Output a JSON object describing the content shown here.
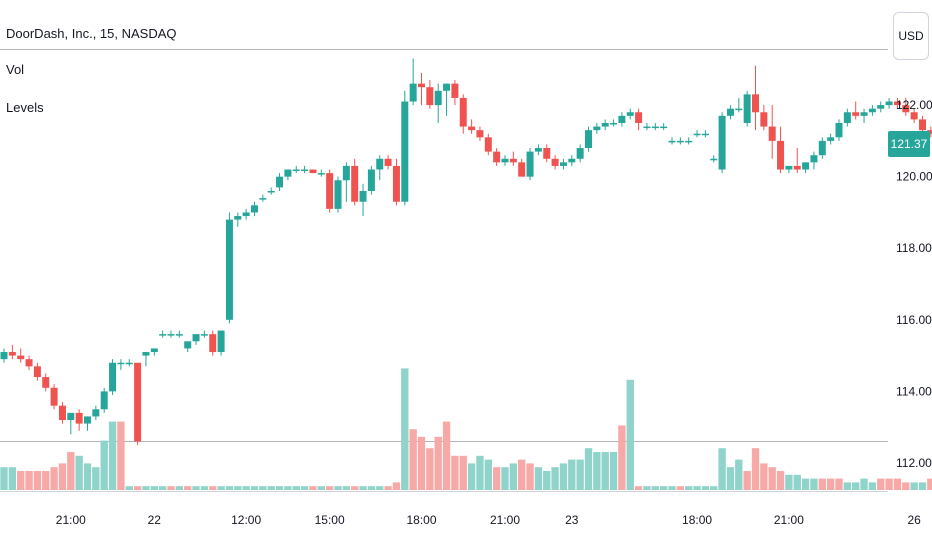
{
  "header": {
    "symbol_title": "DoorDash, Inc., 15, NASDAQ",
    "indicators": [
      "Vol",
      "Levels"
    ],
    "currency": "USD"
  },
  "last_price": {
    "label": "121.37",
    "value": 121.37,
    "color": "#26a69a"
  },
  "colors": {
    "up": "#26a69a",
    "down": "#ef5350",
    "vol_up": "#8fd3cb",
    "vol_down": "#f7a9a7",
    "level_line": "#b2b5be"
  },
  "chart_data": {
    "type": "candlestick",
    "ylim": [
      111.3,
      123.4
    ],
    "ytick_labels": [
      "112.00",
      "114.00",
      "116.00",
      "118.00",
      "120.00",
      "122.00"
    ],
    "ytick_values": [
      112,
      114,
      116,
      118,
      120,
      122
    ],
    "xtick_labels": [
      "21:00",
      "22",
      "12:00",
      "15:00",
      "18:00",
      "21:00",
      "23",
      "18:00",
      "21:00",
      "26"
    ],
    "xtick_positions": [
      8,
      18,
      29,
      39,
      50,
      60,
      68,
      83,
      94,
      109
    ],
    "level_price": 112.6,
    "candles": [
      [
        114.9,
        115.2,
        114.8,
        115.1
      ],
      [
        115.1,
        115.3,
        114.9,
        115.0
      ],
      [
        115.0,
        115.2,
        114.8,
        114.9
      ],
      [
        114.9,
        115.0,
        114.6,
        114.7
      ],
      [
        114.7,
        114.8,
        114.3,
        114.4
      ],
      [
        114.4,
        114.5,
        114.0,
        114.1
      ],
      [
        114.1,
        114.2,
        113.5,
        113.6
      ],
      [
        113.6,
        113.7,
        113.1,
        113.2
      ],
      [
        113.2,
        113.4,
        112.8,
        113.4
      ],
      [
        113.4,
        113.5,
        112.9,
        113.1
      ],
      [
        113.1,
        113.3,
        112.9,
        113.3
      ],
      [
        113.3,
        113.6,
        113.2,
        113.5
      ],
      [
        113.5,
        114.1,
        113.4,
        114.0
      ],
      [
        114.0,
        114.9,
        113.9,
        114.8
      ],
      [
        114.8,
        114.9,
        114.6,
        114.8
      ],
      [
        114.8,
        114.9,
        114.7,
        114.8
      ],
      [
        114.8,
        114.8,
        112.5,
        112.6
      ],
      [
        115.0,
        115.1,
        114.7,
        115.1
      ],
      [
        115.1,
        115.2,
        115.0,
        115.2
      ],
      [
        115.6,
        115.7,
        115.5,
        115.6
      ],
      [
        115.6,
        115.7,
        115.5,
        115.6
      ],
      [
        115.6,
        115.7,
        115.5,
        115.6
      ],
      [
        115.2,
        115.3,
        115.1,
        115.4
      ],
      [
        115.4,
        115.6,
        115.3,
        115.6
      ],
      [
        115.6,
        115.7,
        115.5,
        115.6
      ],
      [
        115.6,
        115.7,
        115.0,
        115.1
      ],
      [
        115.1,
        115.7,
        115.0,
        115.7
      ],
      [
        116.0,
        119.0,
        115.9,
        118.8
      ],
      [
        118.8,
        119.0,
        118.6,
        118.9
      ],
      [
        118.9,
        119.1,
        118.8,
        119.0
      ],
      [
        119.0,
        119.3,
        118.9,
        119.2
      ],
      [
        119.4,
        119.5,
        119.3,
        119.4
      ],
      [
        119.6,
        119.7,
        119.5,
        119.6
      ],
      [
        119.7,
        120.1,
        119.6,
        120.0
      ],
      [
        120.0,
        120.2,
        119.9,
        120.2
      ],
      [
        120.2,
        120.3,
        120.1,
        120.2
      ],
      [
        120.2,
        120.3,
        120.1,
        120.2
      ],
      [
        120.2,
        120.2,
        120.1,
        120.1
      ],
      [
        120.1,
        120.2,
        120.0,
        120.1
      ],
      [
        120.1,
        120.2,
        119.0,
        119.1
      ],
      [
        119.1,
        120.0,
        119.0,
        119.9
      ],
      [
        119.9,
        120.4,
        119.3,
        120.3
      ],
      [
        120.3,
        120.5,
        119.2,
        119.3
      ],
      [
        119.3,
        119.8,
        118.9,
        119.6
      ],
      [
        119.6,
        120.3,
        119.5,
        120.2
      ],
      [
        120.2,
        120.6,
        119.9,
        120.5
      ],
      [
        120.5,
        120.6,
        120.2,
        120.3
      ],
      [
        120.3,
        120.5,
        119.2,
        119.3
      ],
      [
        119.3,
        122.4,
        119.2,
        122.1
      ],
      [
        122.1,
        123.3,
        122.0,
        122.6
      ],
      [
        122.6,
        122.9,
        122.0,
        122.5
      ],
      [
        122.5,
        122.7,
        121.9,
        122.0
      ],
      [
        122.0,
        122.6,
        121.5,
        122.4
      ],
      [
        122.4,
        122.6,
        121.7,
        122.6
      ],
      [
        122.6,
        122.7,
        122.0,
        122.2
      ],
      [
        122.2,
        122.3,
        121.2,
        121.4
      ],
      [
        121.4,
        121.6,
        121.2,
        121.3
      ],
      [
        121.3,
        121.4,
        121.0,
        121.1
      ],
      [
        121.1,
        121.2,
        120.6,
        120.7
      ],
      [
        120.7,
        120.8,
        120.3,
        120.4
      ],
      [
        120.4,
        120.6,
        120.3,
        120.5
      ],
      [
        120.5,
        120.7,
        120.3,
        120.4
      ],
      [
        120.4,
        120.5,
        120.0,
        120.0
      ],
      [
        120.0,
        120.8,
        119.9,
        120.7
      ],
      [
        120.7,
        120.9,
        120.6,
        120.8
      ],
      [
        120.8,
        120.9,
        120.4,
        120.5
      ],
      [
        120.5,
        120.6,
        120.2,
        120.3
      ],
      [
        120.3,
        120.5,
        120.2,
        120.4
      ],
      [
        120.4,
        120.6,
        120.3,
        120.5
      ],
      [
        120.5,
        120.9,
        120.4,
        120.8
      ],
      [
        120.8,
        121.4,
        120.7,
        121.3
      ],
      [
        121.3,
        121.5,
        121.2,
        121.4
      ],
      [
        121.4,
        121.6,
        121.3,
        121.5
      ],
      [
        121.5,
        121.6,
        121.4,
        121.5
      ],
      [
        121.5,
        121.8,
        121.4,
        121.7
      ],
      [
        121.7,
        121.9,
        121.6,
        121.8
      ],
      [
        121.8,
        121.9,
        121.3,
        121.5
      ],
      [
        121.4,
        121.5,
        121.3,
        121.4
      ],
      [
        121.4,
        121.5,
        121.3,
        121.4
      ],
      [
        121.4,
        121.5,
        121.3,
        121.4
      ],
      [
        121.0,
        121.1,
        120.9,
        121.0
      ],
      [
        121.0,
        121.1,
        120.9,
        121.0
      ],
      [
        121.0,
        121.1,
        120.9,
        121.0
      ],
      [
        121.2,
        121.3,
        121.1,
        121.2
      ],
      [
        121.2,
        121.3,
        121.1,
        121.2
      ],
      [
        120.5,
        120.6,
        120.4,
        120.5
      ],
      [
        120.2,
        121.8,
        120.1,
        121.7
      ],
      [
        121.7,
        122.0,
        121.6,
        121.9
      ],
      [
        121.9,
        122.2,
        121.8,
        121.9
      ],
      [
        121.5,
        122.4,
        121.4,
        122.3
      ],
      [
        122.3,
        123.1,
        121.3,
        121.8
      ],
      [
        121.8,
        122.0,
        121.3,
        121.4
      ],
      [
        121.4,
        122.0,
        120.5,
        121.0
      ],
      [
        121.0,
        121.4,
        120.1,
        120.2
      ],
      [
        120.2,
        120.3,
        120.1,
        120.3
      ],
      [
        120.3,
        120.8,
        120.1,
        120.2
      ],
      [
        120.2,
        120.4,
        120.1,
        120.4
      ],
      [
        120.4,
        120.7,
        120.2,
        120.6
      ],
      [
        120.6,
        121.1,
        120.5,
        121.0
      ],
      [
        121.0,
        121.2,
        120.9,
        121.1
      ],
      [
        121.1,
        121.6,
        121.0,
        121.5
      ],
      [
        121.5,
        121.9,
        121.4,
        121.8
      ],
      [
        121.8,
        122.1,
        121.6,
        121.7
      ],
      [
        121.7,
        121.9,
        121.5,
        121.8
      ],
      [
        121.8,
        122.0,
        121.7,
        121.9
      ],
      [
        121.9,
        122.1,
        121.8,
        122.0
      ],
      [
        122.0,
        122.2,
        121.9,
        122.1
      ],
      [
        122.1,
        122.2,
        121.9,
        122.0
      ],
      [
        122.0,
        122.2,
        121.7,
        121.8
      ],
      [
        121.8,
        121.9,
        121.5,
        121.6
      ],
      [
        121.6,
        121.7,
        121.2,
        121.3
      ],
      [
        121.3,
        121.4,
        121.1,
        121.2
      ],
      [
        121.2,
        121.3,
        120.9,
        121.0
      ],
      [
        121.0,
        121.1,
        120.6,
        120.7
      ],
      [
        120.7,
        120.8,
        120.5,
        120.6
      ],
      [
        120.6,
        120.9,
        120.5,
        120.8
      ],
      [
        120.8,
        121.6,
        120.7,
        121.5
      ],
      [
        121.6,
        122.1,
        121.3,
        121.4
      ],
      [
        121.4,
        121.6,
        120.3,
        120.4
      ],
      [
        121.4,
        121.7,
        121.3,
        121.4
      ],
      [
        121.3,
        121.4,
        121.2,
        121.3
      ],
      [
        121.3,
        121.4,
        121.2,
        121.35
      ],
      [
        121.37,
        121.4,
        121.3,
        121.37
      ]
    ],
    "volumes": [
      [
        0.6,
        1
      ],
      [
        0.6,
        1
      ],
      [
        0.5,
        0
      ],
      [
        0.5,
        0
      ],
      [
        0.5,
        0
      ],
      [
        0.5,
        0
      ],
      [
        0.6,
        0
      ],
      [
        0.7,
        0
      ],
      [
        1.0,
        0
      ],
      [
        0.9,
        1
      ],
      [
        0.7,
        1
      ],
      [
        0.6,
        1
      ],
      [
        1.3,
        1
      ],
      [
        1.8,
        1
      ],
      [
        1.8,
        0
      ],
      [
        0.1,
        1
      ],
      [
        0.1,
        0
      ],
      [
        0.1,
        1
      ],
      [
        0.1,
        1
      ],
      [
        0.1,
        1
      ],
      [
        0.1,
        0
      ],
      [
        0.1,
        1
      ],
      [
        0.1,
        0
      ],
      [
        0.1,
        1
      ],
      [
        0.1,
        1
      ],
      [
        0.1,
        0
      ],
      [
        0.1,
        1
      ],
      [
        0.1,
        1
      ],
      [
        0.1,
        1
      ],
      [
        0.1,
        1
      ],
      [
        0.1,
        1
      ],
      [
        0.1,
        1
      ],
      [
        0.1,
        1
      ],
      [
        0.1,
        1
      ],
      [
        0.1,
        1
      ],
      [
        0.1,
        1
      ],
      [
        0.1,
        1
      ],
      [
        0.1,
        0
      ],
      [
        0.1,
        1
      ],
      [
        0.1,
        0
      ],
      [
        0.1,
        1
      ],
      [
        0.1,
        1
      ],
      [
        0.1,
        0
      ],
      [
        0.1,
        1
      ],
      [
        0.1,
        1
      ],
      [
        0.1,
        1
      ],
      [
        0.1,
        0
      ],
      [
        0.2,
        0
      ],
      [
        3.2,
        1
      ],
      [
        1.6,
        0
      ],
      [
        1.4,
        0
      ],
      [
        1.1,
        0
      ],
      [
        1.4,
        0
      ],
      [
        1.8,
        0
      ],
      [
        0.9,
        0
      ],
      [
        0.9,
        0
      ],
      [
        0.7,
        1
      ],
      [
        0.9,
        1
      ],
      [
        0.8,
        1
      ],
      [
        0.6,
        0
      ],
      [
        0.6,
        1
      ],
      [
        0.7,
        1
      ],
      [
        0.8,
        0
      ],
      [
        0.7,
        0
      ],
      [
        0.6,
        1
      ],
      [
        0.5,
        1
      ],
      [
        0.6,
        1
      ],
      [
        0.7,
        1
      ],
      [
        0.8,
        1
      ],
      [
        0.8,
        1
      ],
      [
        1.1,
        1
      ],
      [
        1.0,
        1
      ],
      [
        1.0,
        1
      ],
      [
        1.0,
        1
      ],
      [
        1.7,
        0
      ],
      [
        2.9,
        1
      ],
      [
        0.1,
        0
      ],
      [
        0.1,
        1
      ],
      [
        0.1,
        1
      ],
      [
        0.1,
        1
      ],
      [
        0.1,
        1
      ],
      [
        0.1,
        0
      ],
      [
        0.1,
        1
      ],
      [
        0.1,
        1
      ],
      [
        0.1,
        1
      ],
      [
        0.1,
        1
      ],
      [
        1.1,
        1
      ],
      [
        0.6,
        1
      ],
      [
        0.8,
        1
      ],
      [
        0.5,
        0
      ],
      [
        1.1,
        0
      ],
      [
        0.7,
        0
      ],
      [
        0.6,
        0
      ],
      [
        0.5,
        0
      ],
      [
        0.4,
        1
      ],
      [
        0.4,
        1
      ],
      [
        0.3,
        1
      ],
      [
        0.3,
        1
      ],
      [
        0.3,
        0
      ],
      [
        0.3,
        0
      ],
      [
        0.3,
        0
      ],
      [
        0.2,
        1
      ],
      [
        0.2,
        1
      ],
      [
        0.3,
        1
      ],
      [
        0.2,
        1
      ],
      [
        0.3,
        0
      ],
      [
        0.3,
        0
      ],
      [
        0.3,
        0
      ],
      [
        0.2,
        0
      ],
      [
        0.2,
        1
      ],
      [
        0.2,
        1
      ],
      [
        0.3,
        0
      ],
      [
        0.2,
        1
      ],
      [
        0.3,
        1
      ],
      [
        0.5,
        1
      ],
      [
        1.3,
        0
      ],
      [
        0.9,
        0
      ],
      [
        0.1,
        1
      ],
      [
        0.1,
        1
      ],
      [
        0.1,
        1
      ],
      [
        0.1,
        1
      ]
    ]
  }
}
